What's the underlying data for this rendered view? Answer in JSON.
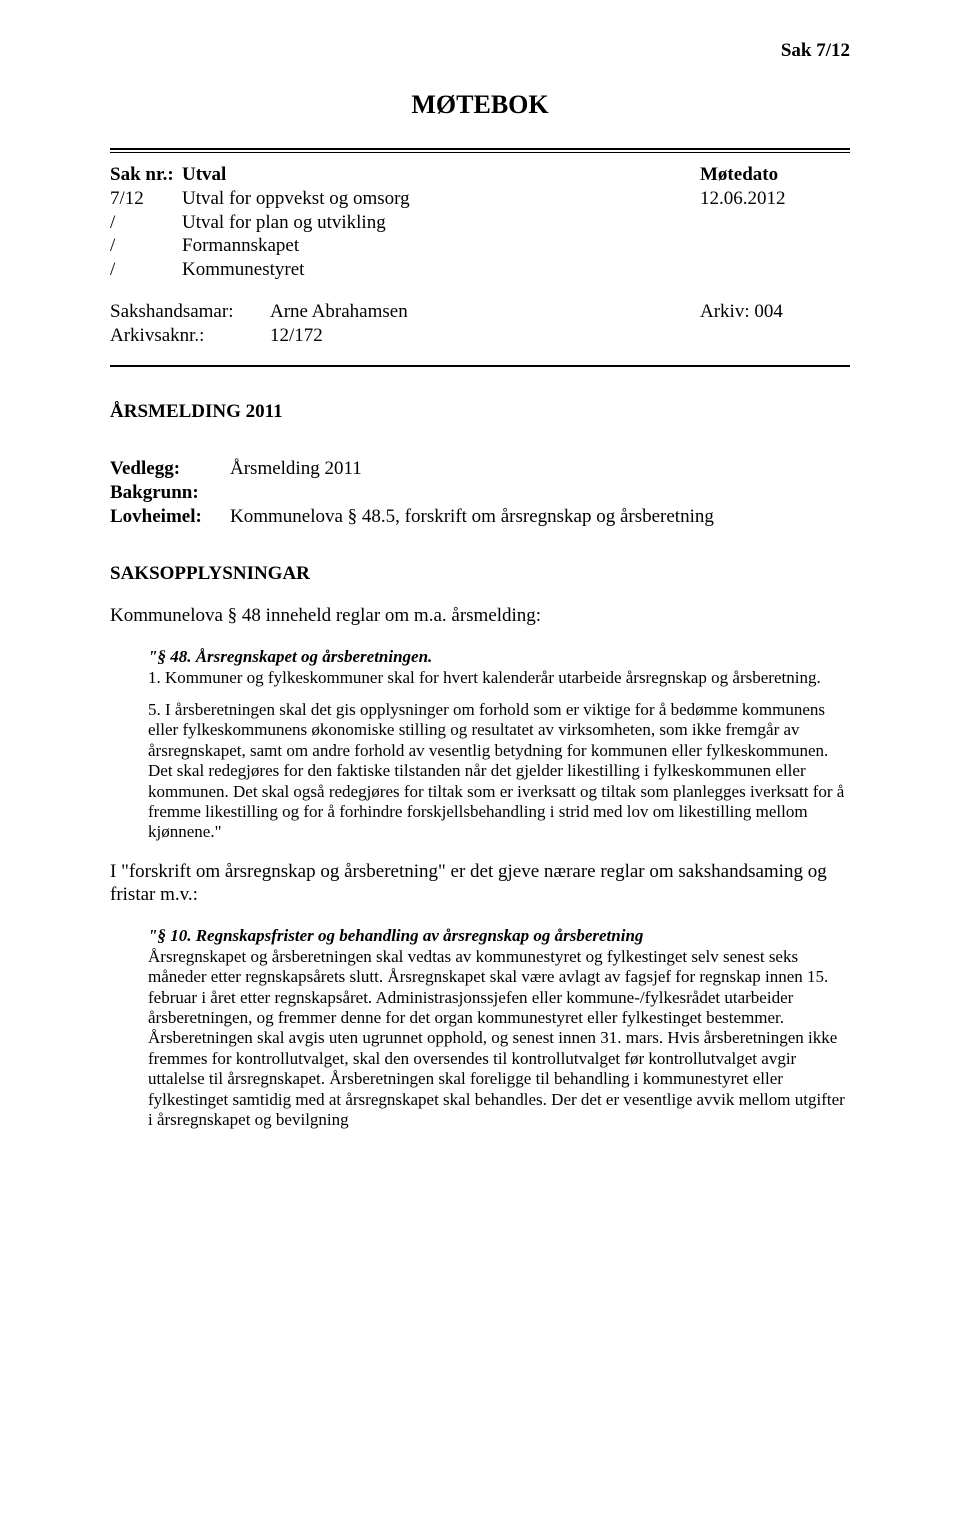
{
  "colors": {
    "text": "#000000",
    "background": "#ffffff",
    "rule": "#000000"
  },
  "typography": {
    "body_fontsize_pt": 14,
    "quote_fontsize_pt": 13,
    "title_fontsize_pt": 20,
    "font_family": "Times New Roman"
  },
  "top_ref": "Sak 7/12",
  "title": "MØTEBOK",
  "meta": {
    "header": {
      "c1": "Sak nr.:",
      "c2": "Utval",
      "c3": "Møtedato"
    },
    "rows": [
      {
        "c1": "7/12",
        "c2": "Utval for oppvekst og omsorg",
        "c3": "12.06.2012"
      },
      {
        "c1": "/",
        "c2": "Utval for plan og utvikling",
        "c3": ""
      },
      {
        "c1": "/",
        "c2": "Formannskapet",
        "c3": ""
      },
      {
        "c1": "/",
        "c2": "Kommunestyret",
        "c3": ""
      }
    ]
  },
  "sak": {
    "rows": [
      {
        "c1": "Sakshandsamar:",
        "c2": "Arne Abrahamsen",
        "c3": "Arkiv: 004"
      },
      {
        "c1": "Arkivsaknr.:",
        "c2": "12/172",
        "c3": ""
      }
    ]
  },
  "section_head": "ÅRSMELDING 2011",
  "vedlegg": {
    "rows": [
      {
        "c1": "Vedlegg:",
        "c2": "Årsmelding 2011"
      },
      {
        "c1": "Bakgrunn:",
        "c2": ""
      },
      {
        "c1": "Lovheimel:",
        "c2": "Kommunelova § 48.5, forskrift om årsregnskap og årsberetning"
      }
    ]
  },
  "sub_head": "SAKSOPPLYSNINGAR",
  "para1": "Kommunelova § 48 inneheld reglar om m.a. årsmelding:",
  "quote1": {
    "head": "\"§ 48. Årsregnskapet og årsberetningen.",
    "p1": "1. Kommuner og fylkeskommuner skal for hvert kalenderår utarbeide årsregnskap og årsberetning.",
    "p2": "5. I årsberetningen skal det gis opplysninger om forhold som er viktige for å bedømme kommunens eller fylkeskommunens økonomiske stilling og resultatet av virksomheten, som ikke fremgår av årsregnskapet, samt om andre forhold av vesentlig betydning for kommunen eller fylkeskommunen. Det skal redegjøres for den faktiske tilstanden når det gjelder likestilling i fylkeskommunen eller kommunen. Det skal også redegjøres for tiltak som er iverksatt og tiltak som planlegges iverksatt for å fremme likestilling og for å forhindre forskjellsbehandling i strid med lov om likestilling mellom kjønnene.\""
  },
  "para2": "I \"forskrift om årsregnskap og årsberetning\" er det gjeve nærare reglar om sakshandsaming og fristar m.v.:",
  "quote2": {
    "head": "\"§ 10. Regnskapsfrister og behandling av årsregnskap og årsberetning",
    "p1": "Årsregnskapet og årsberetningen skal vedtas av kommunestyret og fylkestinget selv senest seks måneder etter regnskapsårets slutt. Årsregnskapet skal være avlagt av fagsjef for regnskap innen 15. februar i året etter regnskapsåret. Administrasjonssjefen eller kommune-/fylkesrådet utarbeider årsberetningen, og fremmer denne for det organ kommunestyret eller fylkestinget bestemmer. Årsberetningen skal avgis uten ugrunnet opphold, og senest innen 31. mars. Hvis årsberetningen ikke fremmes for kontrollutvalget, skal den oversendes til kontrollutvalget før kontrollutvalget avgir uttalelse til årsregnskapet. Årsberetningen skal foreligge til behandling i kommunestyret eller fylkestinget samtidig med at årsregnskapet skal behandles. Der det er vesentlige avvik mellom utgifter i årsregnskapet og bevilgning"
  }
}
